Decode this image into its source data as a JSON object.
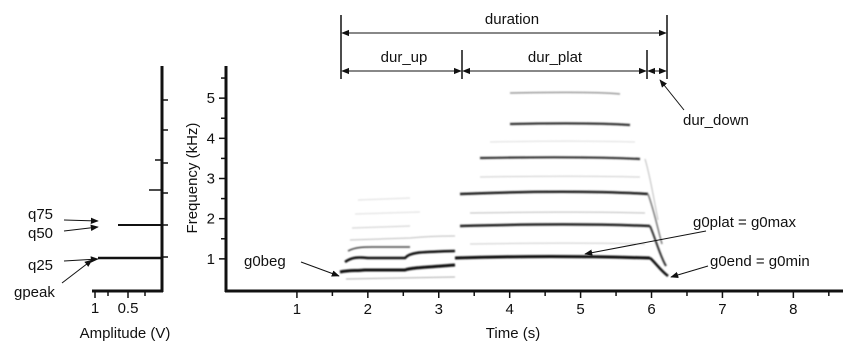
{
  "spectrogram": {
    "xlabel": "Time (s)",
    "ylabel": "Frequency (kHz)",
    "xticks": [
      "1",
      "2",
      "3",
      "4",
      "5",
      "6",
      "7",
      "8"
    ],
    "yticks": [
      "1",
      "2",
      "3",
      "4",
      "5"
    ],
    "xlim": [
      0,
      8.7
    ],
    "ylim": [
      0.2,
      5.8
    ]
  },
  "amplitude": {
    "xlabel": "Amplitude (V)",
    "xticks": [
      "1",
      "0.5"
    ]
  },
  "annotations": {
    "duration": "duration",
    "dur_up": "dur_up",
    "dur_plat": "dur_plat",
    "dur_down": "dur_down",
    "g0beg": "g0beg",
    "g0plat": "g0plat = g0max",
    "g0end": "g0end = g0min",
    "q75": "q75",
    "q50": "q50",
    "q25": "q25",
    "gpeak": "gpeak"
  },
  "segments": {
    "onset_s": 1.6,
    "up_end_s": 3.3,
    "plat_end_s": 6.0,
    "offset_s": 6.25
  }
}
